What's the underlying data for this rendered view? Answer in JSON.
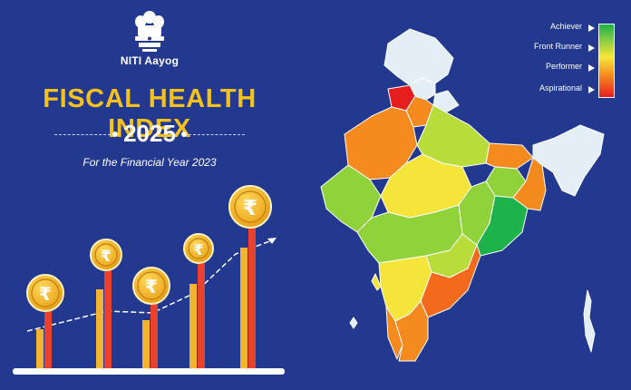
{
  "header": {
    "org_name": "NITI Aayog",
    "title": "FISCAL HEALTH INDEX",
    "year": "2025",
    "subtitle": "For the Financial Year 2023",
    "emblem_icon": "national-emblem-icon"
  },
  "legend": {
    "items": [
      {
        "label": "Achiever",
        "color": "#1db24a"
      },
      {
        "label": "Front Runner",
        "color": "#8fd23a"
      },
      {
        "label": "Performer",
        "color": "#f7e83a"
      },
      {
        "label": "Aspirational",
        "color": "#e61e1e"
      }
    ]
  },
  "coin_icon": "rupee-coin-icon",
  "colors": {
    "background": "#23388f",
    "title": "#f4c21a",
    "bar_yellow": "#f3b531",
    "bar_red": "#e8412e",
    "coin": "#f6b928"
  }
}
